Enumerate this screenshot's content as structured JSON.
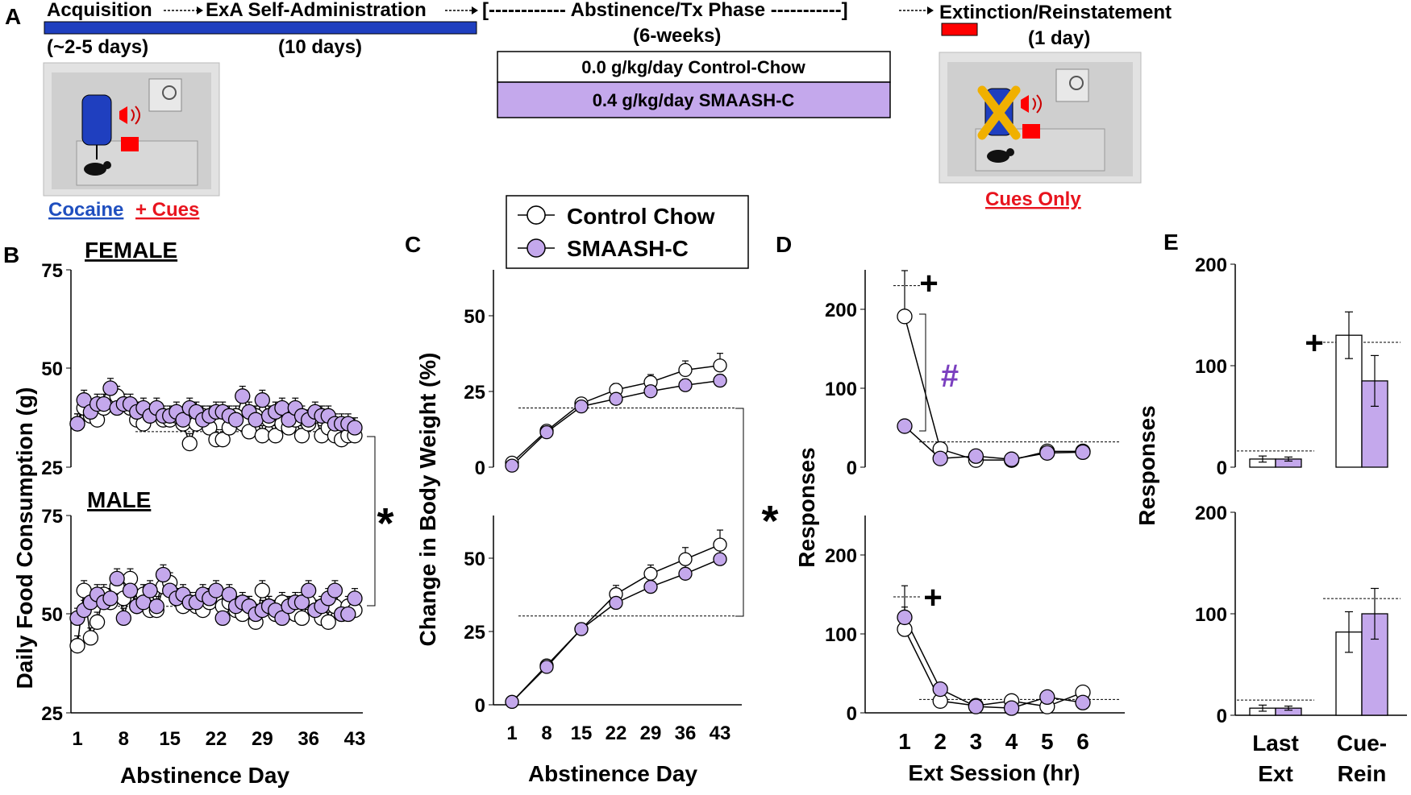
{
  "colors": {
    "purple": "#c4a8ec",
    "purple_text": "#7a3fbf",
    "blue": "#1f3fbf",
    "red": "#ff0000",
    "cocaine_text": "#1f4fbf",
    "cues_text": "#e8141e",
    "black": "#000000"
  },
  "panelA": {
    "label": "A",
    "timeline": {
      "acquisition": "Acquisition",
      "selfadmin": "ExA Self-Administration",
      "abstinence": "[------------ Abstinence/Tx Phase -----------]",
      "extinction": "Extinction/Reinstatement",
      "acq_days": "(~2-5 days)",
      "sa_days": "(10 days)",
      "abs_weeks": "(6-weeks)",
      "ext_days": "(1 day)"
    },
    "diet_boxes": [
      "0.0 g/kg/day Control-Chow",
      "0.4 g/kg/day SMAASH-C"
    ],
    "caption_left_cocaine": "Cocaine",
    "caption_left_cues": "+ Cues",
    "caption_right": "Cues Only"
  },
  "legend": {
    "items": [
      "Control Chow",
      "SMAASH-C"
    ]
  },
  "panelB": {
    "label": "B",
    "female_title": "FEMALE",
    "male_title": "MALE",
    "ylabel": "Daily Food Consumption (g)",
    "xlabel": "Abstinence Day",
    "xticks": [
      "1",
      "8",
      "15",
      "22",
      "29",
      "36",
      "43"
    ],
    "female_yticks": [
      "75",
      "50",
      "25"
    ],
    "male_yticks": [
      "75",
      "50",
      "25"
    ],
    "significance": "*"
  },
  "panelC": {
    "label": "C",
    "ylabel": "Change in Body Weight (%)",
    "xlabel": "Abstinence Day",
    "xticks": [
      "1",
      "8",
      "15",
      "22",
      "29",
      "36",
      "43"
    ],
    "yticks": [
      "50",
      "25",
      "0"
    ],
    "significance": "*"
  },
  "panelD": {
    "label": "D",
    "ylabel": "Responses",
    "xlabel": "Ext Session (hr)",
    "xticks": [
      "1",
      "2",
      "3",
      "4",
      "5",
      "6"
    ],
    "yticks": [
      "200",
      "100",
      "0"
    ],
    "plus": "+",
    "hash": "#"
  },
  "panelE": {
    "label": "E",
    "ylabel": "Responses",
    "yticks": [
      "200",
      "100",
      "0"
    ],
    "cat1_line1": "Last",
    "cat1_line2": "Ext",
    "cat2_line1": "Cue-",
    "cat2_line2": "Rein",
    "plus": "+"
  },
  "chart_data": [
    {
      "id": "B-female",
      "type": "line",
      "title": "FEMALE",
      "xlabel": "Abstinence Day",
      "ylabel": "Daily Food Consumption (g)",
      "xlim": [
        1,
        43
      ],
      "ylim": [
        25,
        75
      ],
      "x": [
        1,
        2,
        3,
        4,
        5,
        6,
        7,
        8,
        9,
        10,
        11,
        12,
        13,
        14,
        15,
        16,
        17,
        18,
        19,
        20,
        21,
        22,
        23,
        24,
        25,
        26,
        27,
        28,
        29,
        30,
        31,
        32,
        33,
        34,
        35,
        36,
        37,
        38,
        39,
        40,
        41,
        42,
        43
      ],
      "series": [
        {
          "name": "Control Chow",
          "values": [
            36,
            40,
            38,
            37,
            40,
            42,
            43,
            41,
            40,
            37,
            36,
            38,
            39,
            37,
            37,
            38,
            36,
            31,
            36,
            38,
            35,
            32,
            32,
            35,
            38,
            36,
            34,
            38,
            33,
            37,
            33,
            36,
            35,
            37,
            33,
            36,
            38,
            33,
            35,
            33,
            32,
            33,
            33
          ]
        },
        {
          "name": "SMAASH-C",
          "values": [
            36,
            42,
            39,
            41,
            41,
            45,
            40,
            41,
            41,
            39,
            40,
            38,
            40,
            38,
            38,
            39,
            37,
            40,
            39,
            37,
            38,
            39,
            39,
            38,
            37,
            43,
            39,
            37,
            42,
            38,
            39,
            40,
            37,
            40,
            38,
            37,
            39,
            38,
            38,
            36,
            36,
            36,
            35
          ]
        }
      ],
      "dashed_reference": 34
    },
    {
      "id": "B-male",
      "type": "line",
      "title": "MALE",
      "xlabel": "Abstinence Day",
      "ylabel": "Daily Food Consumption (g)",
      "xlim": [
        1,
        43
      ],
      "ylim": [
        25,
        75
      ],
      "x": [
        1,
        2,
        3,
        4,
        5,
        6,
        7,
        8,
        9,
        10,
        11,
        12,
        13,
        14,
        15,
        16,
        17,
        18,
        19,
        20,
        21,
        22,
        23,
        24,
        25,
        26,
        27,
        28,
        29,
        30,
        31,
        32,
        33,
        34,
        35,
        36,
        37,
        38,
        39,
        40,
        41,
        42,
        43
      ],
      "series": [
        {
          "name": "Control Chow",
          "values": [
            42,
            56,
            44,
            48,
            55,
            53,
            57,
            54,
            59,
            52,
            55,
            51,
            51,
            57,
            58,
            54,
            52,
            53,
            52,
            51,
            53,
            55,
            52,
            53,
            51,
            50,
            52,
            48,
            56,
            52,
            50,
            53,
            51,
            50,
            49,
            53,
            51,
            49,
            48,
            52,
            50,
            52,
            51
          ]
        },
        {
          "name": "SMAASH-C",
          "values": [
            49,
            51,
            53,
            55,
            53,
            54,
            59,
            49,
            56,
            52,
            53,
            56,
            52,
            60,
            56,
            54,
            55,
            53,
            53,
            55,
            54,
            56,
            49,
            55,
            52,
            53,
            52,
            50,
            51,
            52,
            51,
            49,
            52,
            53,
            53,
            56,
            51,
            52,
            54,
            56,
            50,
            50,
            54
          ]
        }
      ],
      "dashed_reference": 52
    },
    {
      "id": "C-female",
      "type": "line",
      "xlabel": "Abstinence Day",
      "ylabel": "Change in Body Weight (%)",
      "xlim": [
        1,
        43
      ],
      "ylim": [
        0,
        65
      ],
      "x": [
        1,
        8,
        15,
        22,
        29,
        36,
        43
      ],
      "series": [
        {
          "name": "Control Chow",
          "values": [
            1.5,
            12,
            21,
            25.5,
            28,
            32,
            33.5
          ],
          "errors": [
            0.5,
            1,
            1.5,
            2,
            2.5,
            3,
            4
          ]
        },
        {
          "name": "SMAASH-C",
          "values": [
            0.5,
            11.5,
            20,
            22.5,
            25,
            27,
            28.5
          ],
          "errors": [
            0.5,
            1,
            1.5,
            1.5,
            2,
            2,
            2
          ]
        }
      ],
      "dashed_reference": 19.5
    },
    {
      "id": "C-male",
      "type": "line",
      "xlabel": "Abstinence Day",
      "ylabel": "Change in Body Weight (%)",
      "xlim": [
        1,
        43
      ],
      "ylim": [
        0,
        65
      ],
      "x": [
        1,
        8,
        15,
        22,
        29,
        36,
        43
      ],
      "series": [
        {
          "name": "Control Chow",
          "values": [
            1,
            13.5,
            26,
            38,
            45,
            50,
            55
          ],
          "errors": [
            0.5,
            1.5,
            2,
            3,
            3,
            4,
            5
          ]
        },
        {
          "name": "SMAASH-C",
          "values": [
            1,
            13,
            26,
            35,
            40.5,
            45,
            50
          ],
          "errors": [
            0.5,
            1.5,
            2,
            2.5,
            3,
            3,
            4
          ]
        }
      ],
      "dashed_reference": 30.5
    },
    {
      "id": "D-female",
      "type": "line",
      "xlabel": "Ext Session (hr)",
      "ylabel": "Responses",
      "xlim": [
        1,
        6
      ],
      "ylim": [
        0,
        250
      ],
      "x": [
        1,
        2,
        3,
        4,
        5,
        6
      ],
      "series": [
        {
          "name": "Control Chow",
          "values": [
            191,
            23,
            9,
            9,
            20,
            20
          ],
          "errors": [
            58,
            5,
            3,
            3,
            4,
            4
          ]
        },
        {
          "name": "SMAASH-C",
          "values": [
            52,
            11,
            14,
            10,
            18,
            19
          ],
          "errors": [
            6,
            3,
            3,
            3,
            3,
            3
          ]
        }
      ],
      "dashed_reference": 32,
      "dashed_peak": 230
    },
    {
      "id": "D-male",
      "type": "line",
      "xlabel": "Ext Session (hr)",
      "ylabel": "Responses",
      "xlim": [
        1,
        6
      ],
      "ylim": [
        0,
        250
      ],
      "x": [
        1,
        2,
        3,
        4,
        5,
        6
      ],
      "series": [
        {
          "name": "Control Chow",
          "values": [
            106,
            15,
            9,
            15,
            8,
            26
          ],
          "errors": [
            28,
            4,
            2,
            3,
            2,
            4
          ]
        },
        {
          "name": "SMAASH-C",
          "values": [
            121,
            30,
            8,
            6,
            20,
            13
          ],
          "errors": [
            40,
            5,
            2,
            2,
            4,
            3
          ]
        }
      ],
      "dashed_reference": 17,
      "dashed_peak": 147
    },
    {
      "id": "E-female",
      "type": "bar",
      "ylabel": "Responses",
      "ylim": [
        0,
        200
      ],
      "categories": [
        "Last Ext",
        "Cue-Rein"
      ],
      "series": [
        {
          "name": "Control Chow",
          "values": [
            8,
            130
          ],
          "errors": [
            3,
            23
          ]
        },
        {
          "name": "SMAASH-C",
          "values": [
            8,
            85
          ],
          "errors": [
            2,
            25
          ]
        }
      ],
      "dashed_reference": [
        16,
        123
      ]
    },
    {
      "id": "E-male",
      "type": "bar",
      "ylabel": "Responses",
      "ylim": [
        0,
        200
      ],
      "categories": [
        "Last Ext",
        "Cue-Rein"
      ],
      "series": [
        {
          "name": "Control Chow",
          "values": [
            7,
            82
          ],
          "errors": [
            3,
            20
          ]
        },
        {
          "name": "SMAASH-C",
          "values": [
            7,
            100
          ],
          "errors": [
            2,
            25
          ]
        }
      ],
      "dashed_reference": [
        15,
        115
      ]
    }
  ]
}
